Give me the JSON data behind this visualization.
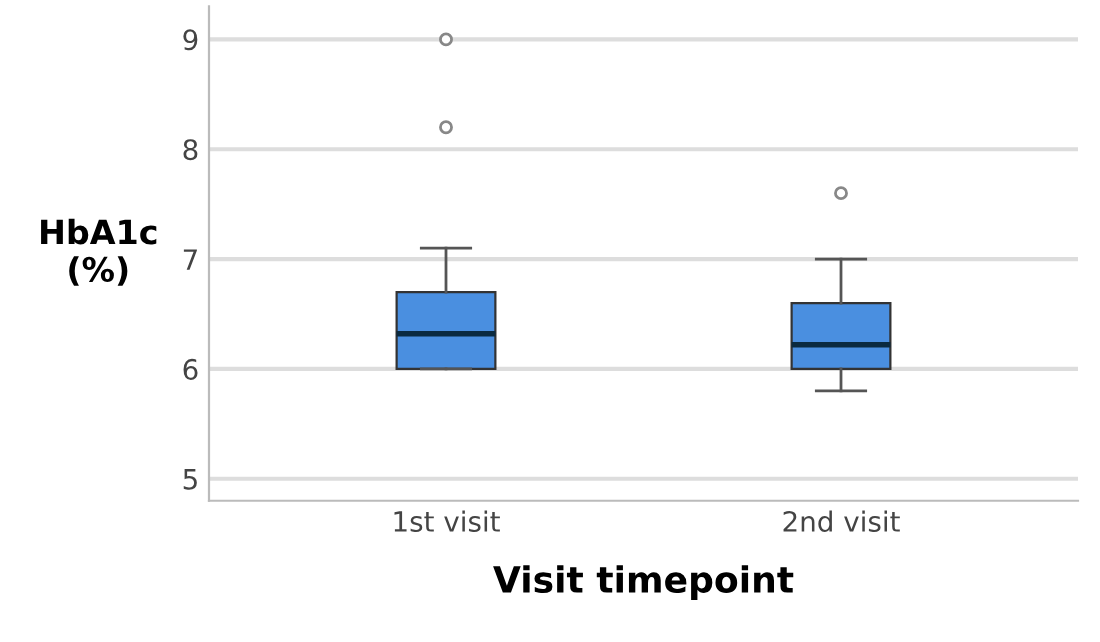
{
  "chart_data": {
    "type": "box",
    "xlabel": "Visit timepoint",
    "ylabel": "HbA1c\n(%)",
    "categories": [
      "1st visit",
      "2nd visit"
    ],
    "color": "#4a8fe0",
    "boxes": [
      {
        "low": 6.0,
        "q1": 6.0,
        "median": 6.32,
        "q3": 6.7,
        "high": 7.1,
        "outliers": [
          8.2,
          9.0
        ]
      },
      {
        "low": 5.8,
        "q1": 6.0,
        "median": 6.22,
        "q3": 6.6,
        "high": 7.0,
        "outliers": [
          7.6
        ]
      }
    ],
    "ylim": [
      4.8,
      9.3
    ],
    "yticks": [
      5,
      6,
      7,
      8,
      9
    ],
    "grid": "y"
  }
}
